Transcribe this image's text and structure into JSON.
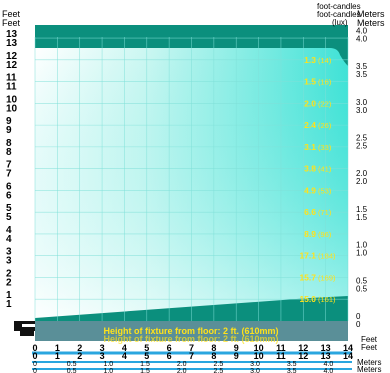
{
  "chart_data": {
    "type": "line",
    "title": "",
    "left_axis_label": "Feet",
    "right_axis_label": "Meters",
    "top_right_label": "foot-candles",
    "top_right_unit": "(lux)",
    "bottom_right_feet_label": "Feet",
    "bottom_right_meters_label": "Meters",
    "caption": "Height of fixture from floor: 2 ft. (610mm)",
    "y_feet_ticks": [
      "1",
      "2",
      "3",
      "4",
      "5",
      "6",
      "7",
      "8",
      "9",
      "10",
      "11",
      "12",
      "13"
    ],
    "y_meter_ticks": [
      "0",
      "0.5",
      "1.0",
      "1.5",
      "2.0",
      "2.5",
      "3.0",
      "3.5",
      "4.0"
    ],
    "x_feet_ticks": [
      "0",
      "1",
      "2",
      "3",
      "4",
      "5",
      "6",
      "7",
      "8",
      "9",
      "10",
      "11",
      "12",
      "13",
      "14"
    ],
    "x_meter_ticks": [
      "0",
      "0.5",
      "1.0",
      "1.5",
      "2.0",
      "2.5",
      "3.0",
      "3.5",
      "4.0"
    ],
    "xlim_feet": [
      0,
      14
    ],
    "ylim_feet": [
      0,
      13.6
    ],
    "grid": true,
    "readings": [
      {
        "height_ft": 12,
        "fc": "1.3",
        "lux": "(14)"
      },
      {
        "height_ft": 11,
        "fc": "1.5",
        "lux": "(16)"
      },
      {
        "height_ft": 10,
        "fc": "2.0",
        "lux": "(22)"
      },
      {
        "height_ft": 9,
        "fc": "2.4",
        "lux": "(26)"
      },
      {
        "height_ft": 8,
        "fc": "3.1",
        "lux": "(33)"
      },
      {
        "height_ft": 7,
        "fc": "3.8",
        "lux": "(41)"
      },
      {
        "height_ft": 6,
        "fc": "4.9",
        "lux": "(53)"
      },
      {
        "height_ft": 5,
        "fc": "6.6",
        "lux": "(71)"
      },
      {
        "height_ft": 4,
        "fc": "8.9",
        "lux": "(96)"
      },
      {
        "height_ft": 3,
        "fc": "17.1",
        "lux": "(184)"
      },
      {
        "height_ft": 2,
        "fc": "15.7",
        "lux": "(169)"
      },
      {
        "height_ft": 1,
        "fc": "15.0",
        "lux": "(161)"
      }
    ],
    "colors": {
      "background": "#0b8f7d",
      "beam": "#44e6da",
      "beam_light": "#e8fbf8",
      "grid": "#7fe0d8",
      "reading": "#ffe21a",
      "caption_bar": "#5a8f98",
      "axis_line": "#2aa6df"
    }
  }
}
